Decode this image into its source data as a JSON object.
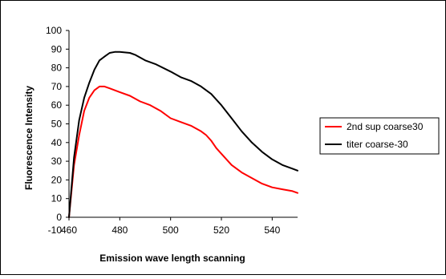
{
  "chart_data": {
    "type": "line",
    "title": "",
    "xlabel": "Emission wave length scanning",
    "ylabel": "Fluorescence Intensity",
    "xlim": [
      460,
      550
    ],
    "ylim": [
      0,
      100
    ],
    "x_ticks": [
      460,
      480,
      500,
      520,
      540
    ],
    "y_ticks": [
      0,
      10,
      20,
      30,
      40,
      50,
      60,
      70,
      80,
      90,
      100
    ],
    "x_tick_labels": [
      "460",
      "480",
      "500",
      "520",
      "540"
    ],
    "y_tick_labels": [
      "0",
      "10",
      "20",
      "30",
      "40",
      "50",
      "60",
      "70",
      "80",
      "90",
      "100"
    ],
    "extra_tick_text": "-10",
    "grid": false,
    "legend_position": "right",
    "series": [
      {
        "name": "2nd sup coarse30",
        "color": "#ff0000",
        "points": [
          [
            460,
            0
          ],
          [
            462,
            28
          ],
          [
            464,
            44
          ],
          [
            466,
            57
          ],
          [
            468,
            64
          ],
          [
            470,
            68
          ],
          [
            472,
            70
          ],
          [
            474,
            70
          ],
          [
            476,
            69
          ],
          [
            478,
            68
          ],
          [
            480,
            67
          ],
          [
            484,
            65
          ],
          [
            488,
            62
          ],
          [
            492,
            60
          ],
          [
            496,
            57
          ],
          [
            500,
            53
          ],
          [
            504,
            51
          ],
          [
            508,
            49
          ],
          [
            512,
            46
          ],
          [
            514,
            44
          ],
          [
            516,
            41
          ],
          [
            518,
            37
          ],
          [
            520,
            34
          ],
          [
            524,
            28
          ],
          [
            528,
            24
          ],
          [
            532,
            21
          ],
          [
            536,
            18
          ],
          [
            540,
            16
          ],
          [
            544,
            15
          ],
          [
            548,
            14
          ],
          [
            550,
            13
          ]
        ]
      },
      {
        "name": "titer coarse-30",
        "color": "#000000",
        "points": [
          [
            460,
            0
          ],
          [
            462,
            32
          ],
          [
            464,
            52
          ],
          [
            466,
            64
          ],
          [
            468,
            72
          ],
          [
            470,
            79
          ],
          [
            472,
            84
          ],
          [
            474,
            86
          ],
          [
            476,
            88
          ],
          [
            478,
            88.5
          ],
          [
            480,
            88.5
          ],
          [
            484,
            88
          ],
          [
            486,
            87
          ],
          [
            490,
            84
          ],
          [
            494,
            82
          ],
          [
            500,
            78
          ],
          [
            504,
            75
          ],
          [
            508,
            73
          ],
          [
            512,
            70
          ],
          [
            516,
            66
          ],
          [
            520,
            60
          ],
          [
            524,
            53
          ],
          [
            528,
            46
          ],
          [
            532,
            40
          ],
          [
            536,
            35
          ],
          [
            540,
            31
          ],
          [
            544,
            28
          ],
          [
            548,
            26
          ],
          [
            550,
            25
          ]
        ]
      }
    ]
  }
}
